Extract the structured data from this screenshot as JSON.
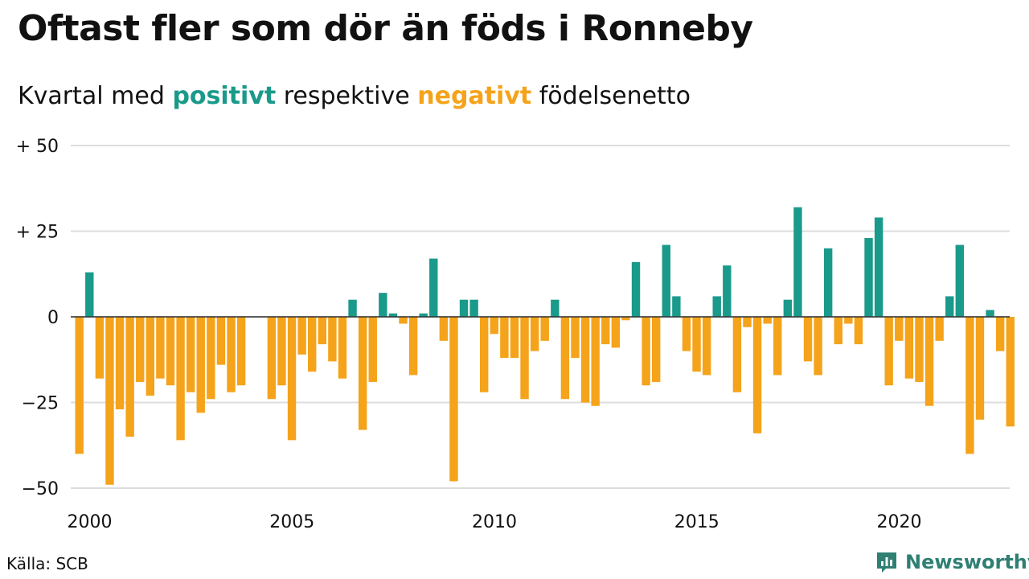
{
  "title": "Oftast fler som dör än föds i Ronneby",
  "subtitle": {
    "prefix": "Kvartal med",
    "positive_word": "positivt",
    "middle": "respektive",
    "negative_word": "negativt",
    "suffix": "födelsenetto"
  },
  "colors": {
    "positive": "#1a9a8a",
    "negative": "#f5a31a",
    "grid": "#dddddd",
    "zero_line": "#333333",
    "brand": "#2f7f73"
  },
  "source": "Källa: SCB",
  "brand": {
    "name": "Newsworthy",
    "icon": "newsworthy-logo-icon"
  },
  "chart_data": {
    "type": "bar",
    "title": "Oftast fler som dör än föds i Ronneby",
    "ylim": [
      -50,
      50
    ],
    "grid": true,
    "yticks": [
      {
        "value": 50,
        "label": "+ 50"
      },
      {
        "value": 25,
        "label": "+ 25"
      },
      {
        "value": 0,
        "label": "0"
      },
      {
        "value": -25,
        "label": "−25"
      },
      {
        "value": -50,
        "label": "−50"
      }
    ],
    "xticks": [
      {
        "year": 2000,
        "label": "2000"
      },
      {
        "year": 2005,
        "label": "2005"
      },
      {
        "year": 2010,
        "label": "2010"
      },
      {
        "year": 2015,
        "label": "2015"
      },
      {
        "year": 2020,
        "label": "2020"
      }
    ],
    "x_start": "2000 Q1",
    "values": [
      -40,
      13,
      -18,
      -49,
      -27,
      -35,
      -19,
      -23,
      -18,
      -20,
      -36,
      -22,
      -28,
      -24,
      -14,
      -22,
      -20,
      0,
      0,
      -24,
      -20,
      -36,
      -11,
      -16,
      -8,
      -13,
      -18,
      5,
      -33,
      -19,
      7,
      1,
      -2,
      -17,
      1,
      17,
      -7,
      -48,
      5,
      5,
      -22,
      -5,
      -12,
      -12,
      -24,
      -10,
      -7,
      5,
      -24,
      -12,
      -25,
      -26,
      -8,
      -9,
      -1,
      16,
      -20,
      -19,
      21,
      6,
      -10,
      -16,
      -17,
      6,
      15,
      -22,
      -3,
      -34,
      -2,
      -17,
      5,
      32,
      -13,
      -17,
      20,
      -8,
      -2,
      -8,
      23,
      29,
      -20,
      -7,
      -18,
      -19,
      -26,
      -7,
      6,
      21,
      -40,
      -30,
      2,
      -10,
      -32
    ]
  }
}
